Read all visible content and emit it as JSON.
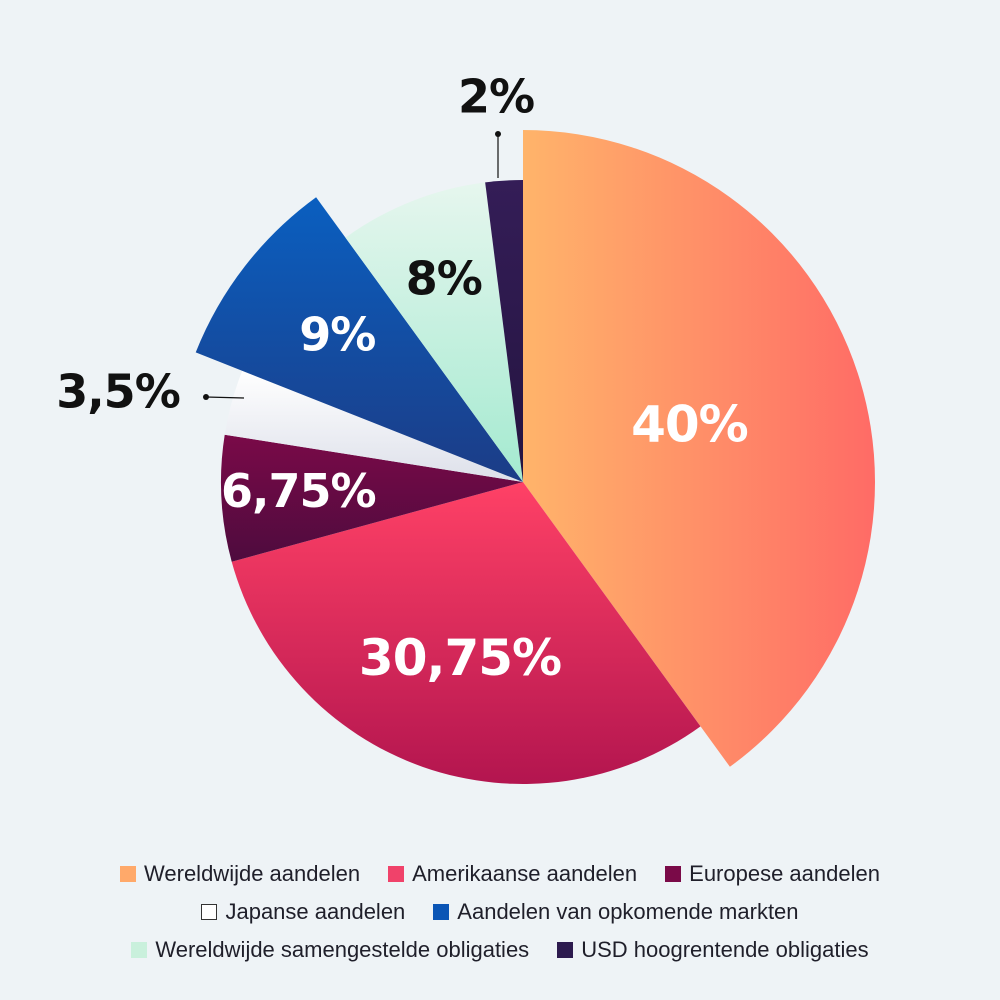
{
  "chart_data": {
    "type": "pie",
    "start_angle_deg": 0,
    "direction": "clockwise",
    "slices": [
      {
        "label": "Wereldwijde aandelen",
        "value": 40,
        "display": "40%",
        "color": "#ff9f66",
        "gradient": [
          "#ffb46a",
          "#ff6b66"
        ],
        "label_color": "#ffffff",
        "exploded": true
      },
      {
        "label": "Amerikaanse aandelen",
        "value": 30.75,
        "display": "30,75%",
        "color": "#f03c62",
        "gradient": [
          "#ff4166",
          "#b3154f"
        ],
        "label_color": "#ffffff",
        "exploded": false
      },
      {
        "label": "Europese aandelen",
        "value": 6.75,
        "display": "6,75%",
        "color": "#6e0a45",
        "gradient": [
          "#7a0a48",
          "#4e0b3e"
        ],
        "label_color": "#ffffff",
        "exploded": false
      },
      {
        "label": "Japanse aandelen",
        "value": 3.5,
        "display": "3,5%",
        "color": "#ffffff",
        "gradient": [
          "#ffffff",
          "#dde0ea"
        ],
        "label_color": "#111111",
        "exploded": false,
        "outside_label": true
      },
      {
        "label": "Aandelen van opkomende markten",
        "value": 9,
        "display": "9%",
        "color": "#0a55b5",
        "gradient": [
          "#0a5fc0",
          "#1c3c86"
        ],
        "label_color": "#ffffff",
        "exploded": true
      },
      {
        "label": "Wereldwijde samengestelde obligaties",
        "value": 8,
        "display": "8%",
        "color": "#c9f0dc",
        "gradient": [
          "#e6f6ee",
          "#a4ead0"
        ],
        "label_color": "#111111",
        "exploded": false
      },
      {
        "label": "USD hoogrentende obligaties",
        "value": 2,
        "display": "2%",
        "color": "#2c1a4e",
        "gradient": [
          "#341d57",
          "#241440"
        ],
        "label_color": "#111111",
        "exploded": false,
        "outside_label": true
      }
    ]
  },
  "legend": {
    "rows": [
      [
        {
          "label": "Wereldwijde aandelen",
          "color": "#ffa96a",
          "border": ""
        },
        {
          "label": "Amerikaanse aandelen",
          "color": "#f0426a",
          "border": ""
        },
        {
          "label": "Europese aandelen",
          "color": "#7a0a48",
          "border": ""
        }
      ],
      [
        {
          "label": "Japanse aandelen",
          "color": "#ffffff",
          "border": "#333333"
        },
        {
          "label": "Aandelen van opkomende markten",
          "color": "#0a55b5",
          "border": ""
        }
      ],
      [
        {
          "label": "Wereldwijde samengestelde obligaties",
          "color": "#c9f0dc",
          "border": ""
        },
        {
          "label": "USD hoogrentende obligaties",
          "color": "#2c1a4e",
          "border": ""
        }
      ]
    ]
  }
}
